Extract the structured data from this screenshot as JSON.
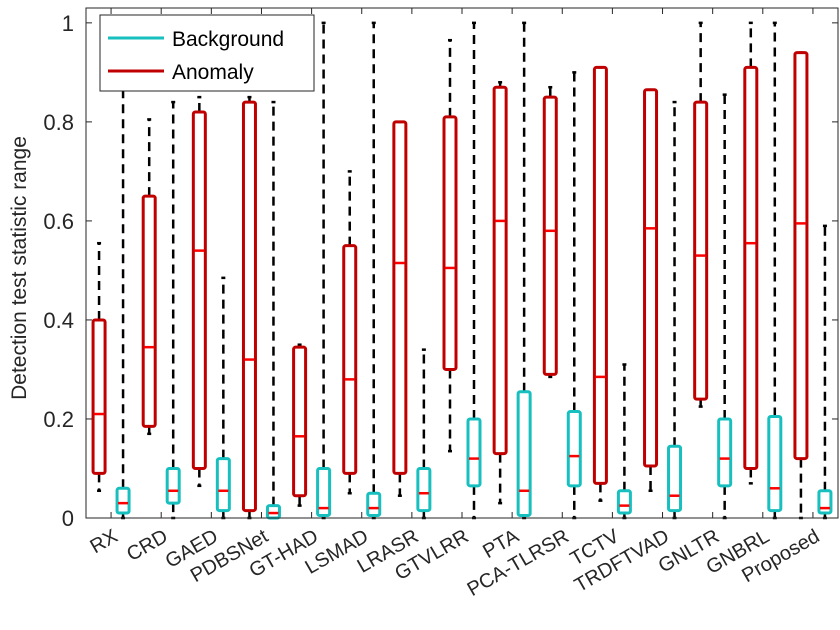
{
  "chart_data": {
    "type": "boxplot",
    "ylabel": "Detection test statistic range",
    "ylim": [
      0,
      1.03
    ],
    "yticks": [
      0,
      0.2,
      0.4,
      0.6,
      0.8,
      1
    ],
    "ytick_labels": [
      "0",
      "0.2",
      "0.4",
      "0.6",
      "0.8",
      "1"
    ],
    "grid": false,
    "legend_position": "top-left",
    "categories": [
      "RX",
      "CRD",
      "GAED",
      "PDBSNet",
      "GT-HAD",
      "LSMAD",
      "LRASR",
      "GTVLRR",
      "PTA",
      "PCA-TLRSR",
      "TCTV",
      "TRDFTVAD",
      "GNLTR",
      "GNBRL",
      "Proposed"
    ],
    "series": [
      {
        "name": "Anomaly",
        "color": "#c00000",
        "boxes": [
          {
            "whisker_low": 0.055,
            "q1": 0.09,
            "median": 0.21,
            "q3": 0.4,
            "whisker_high": 0.555
          },
          {
            "whisker_low": 0.17,
            "q1": 0.185,
            "median": 0.345,
            "q3": 0.65,
            "whisker_high": 0.805
          },
          {
            "whisker_low": 0.065,
            "q1": 0.1,
            "median": 0.54,
            "q3": 0.82,
            "whisker_high": 0.85
          },
          {
            "whisker_low": 0.0,
            "q1": 0.015,
            "median": 0.32,
            "q3": 0.84,
            "whisker_high": 0.85
          },
          {
            "whisker_low": 0.025,
            "q1": 0.045,
            "median": 0.165,
            "q3": 0.345,
            "whisker_high": 0.35
          },
          {
            "whisker_low": 0.05,
            "q1": 0.09,
            "median": 0.28,
            "q3": 0.55,
            "whisker_high": 0.7
          },
          {
            "whisker_low": 0.045,
            "q1": 0.09,
            "median": 0.515,
            "q3": 0.8,
            "whisker_high": 0.8
          },
          {
            "whisker_low": 0.135,
            "q1": 0.3,
            "median": 0.505,
            "q3": 0.81,
            "whisker_high": 0.965
          },
          {
            "whisker_low": 0.03,
            "q1": 0.13,
            "median": 0.6,
            "q3": 0.87,
            "whisker_high": 0.88
          },
          {
            "whisker_low": 0.285,
            "q1": 0.29,
            "median": 0.58,
            "q3": 0.85,
            "whisker_high": 0.87
          },
          {
            "whisker_low": 0.035,
            "q1": 0.07,
            "median": 0.285,
            "q3": 0.91,
            "whisker_high": 0.91
          },
          {
            "whisker_low": 0.055,
            "q1": 0.105,
            "median": 0.585,
            "q3": 0.865,
            "whisker_high": 0.865
          },
          {
            "whisker_low": 0.225,
            "q1": 0.24,
            "median": 0.53,
            "q3": 0.84,
            "whisker_high": 1.0
          },
          {
            "whisker_low": 0.07,
            "q1": 0.1,
            "median": 0.555,
            "q3": 0.91,
            "whisker_high": 1.0
          },
          {
            "whisker_low": 0.0,
            "q1": 0.12,
            "median": 0.595,
            "q3": 0.94,
            "whisker_high": 0.94
          }
        ]
      },
      {
        "name": "Background",
        "color": "#17bfbf",
        "boxes": [
          {
            "whisker_low": 0.0,
            "q1": 0.01,
            "median": 0.03,
            "q3": 0.06,
            "whisker_high": 0.87
          },
          {
            "whisker_low": 0.0,
            "q1": 0.03,
            "median": 0.055,
            "q3": 0.1,
            "whisker_high": 0.84
          },
          {
            "whisker_low": 0.0,
            "q1": 0.015,
            "median": 0.055,
            "q3": 0.12,
            "whisker_high": 0.485
          },
          {
            "whisker_low": 0.0,
            "q1": 0.0,
            "median": 0.01,
            "q3": 0.025,
            "whisker_high": 0.84
          },
          {
            "whisker_low": 0.0,
            "q1": 0.005,
            "median": 0.02,
            "q3": 0.1,
            "whisker_high": 1.0
          },
          {
            "whisker_low": 0.0,
            "q1": 0.005,
            "median": 0.02,
            "q3": 0.05,
            "whisker_high": 1.0
          },
          {
            "whisker_low": 0.0,
            "q1": 0.015,
            "median": 0.05,
            "q3": 0.1,
            "whisker_high": 0.34
          },
          {
            "whisker_low": 0.0,
            "q1": 0.065,
            "median": 0.12,
            "q3": 0.2,
            "whisker_high": 1.0
          },
          {
            "whisker_low": 0.0,
            "q1": 0.005,
            "median": 0.055,
            "q3": 0.255,
            "whisker_high": 1.0
          },
          {
            "whisker_low": 0.0,
            "q1": 0.065,
            "median": 0.125,
            "q3": 0.215,
            "whisker_high": 0.9
          },
          {
            "whisker_low": 0.0,
            "q1": 0.01,
            "median": 0.025,
            "q3": 0.055,
            "whisker_high": 0.31
          },
          {
            "whisker_low": 0.0,
            "q1": 0.015,
            "median": 0.045,
            "q3": 0.145,
            "whisker_high": 0.84
          },
          {
            "whisker_low": 0.0,
            "q1": 0.065,
            "median": 0.12,
            "q3": 0.2,
            "whisker_high": 0.855
          },
          {
            "whisker_low": 0.0,
            "q1": 0.015,
            "median": 0.06,
            "q3": 0.205,
            "whisker_high": 1.0
          },
          {
            "whisker_low": 0.0,
            "q1": 0.01,
            "median": 0.02,
            "q3": 0.055,
            "whisker_high": 0.59
          }
        ]
      }
    ],
    "colors": {
      "whisker": "#000000",
      "median": "#ff0000",
      "axis": "#262626"
    }
  }
}
